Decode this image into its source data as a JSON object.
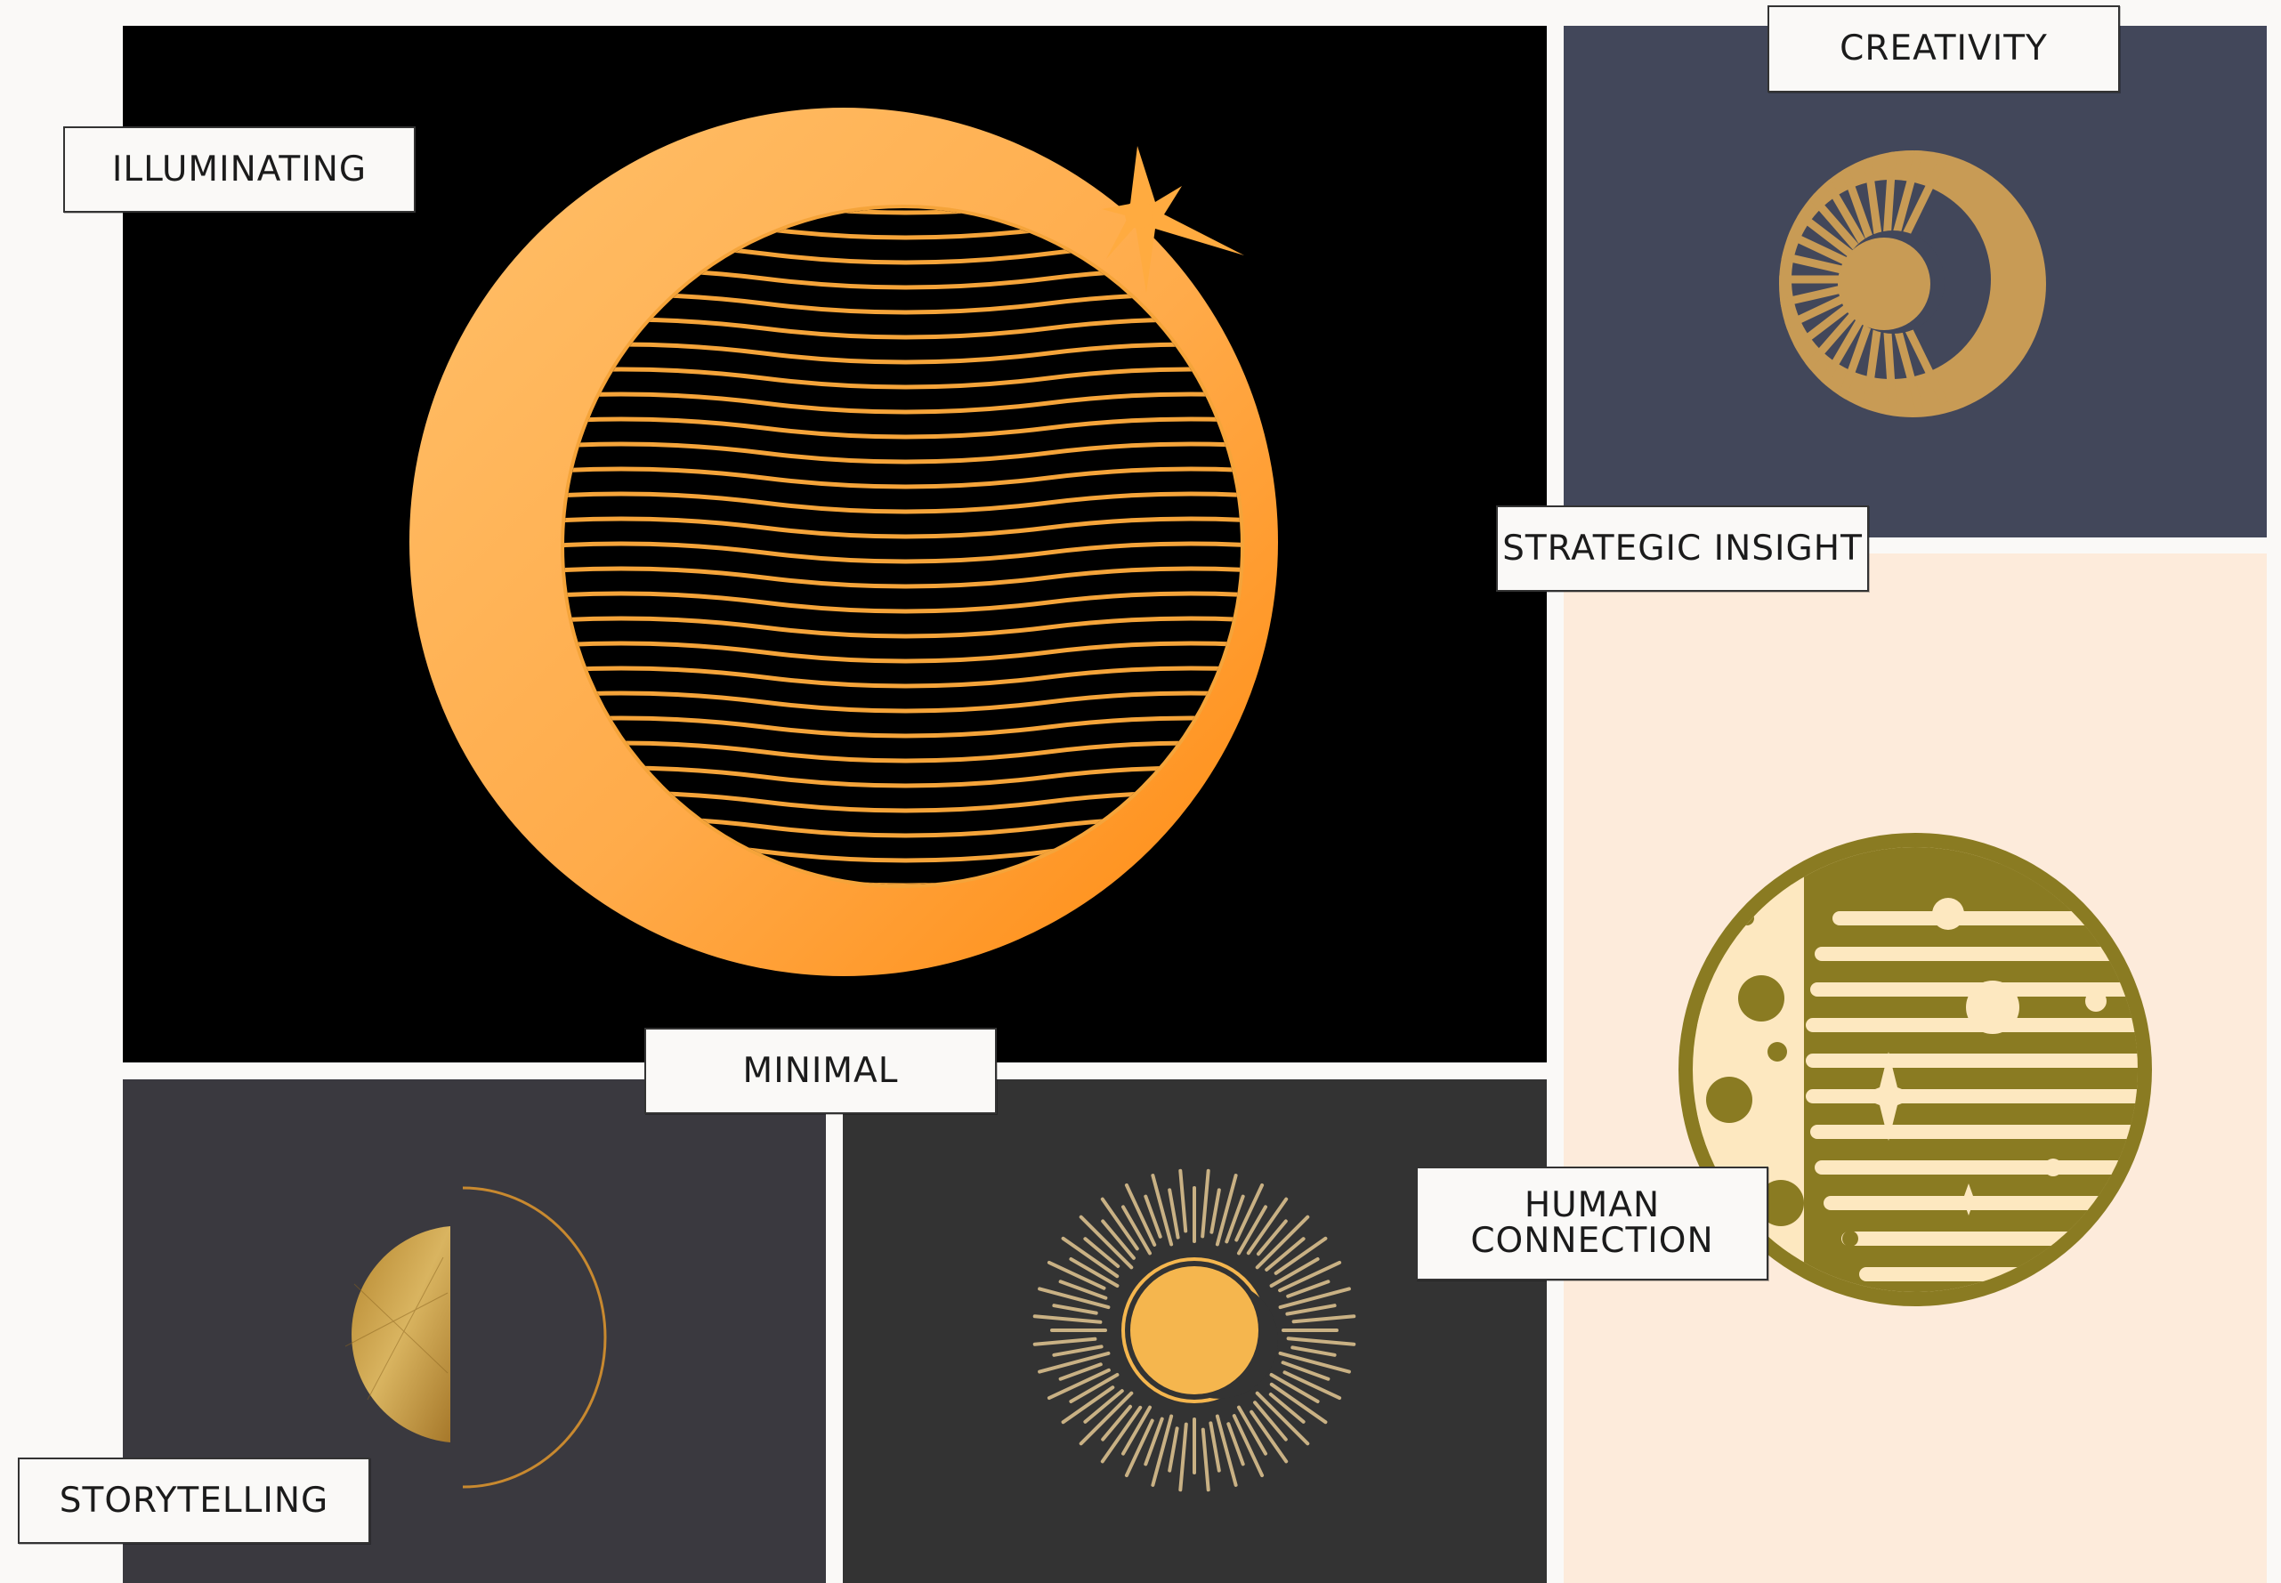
{
  "moodboard": {
    "labels": {
      "illuminating": "ILLUMINATING",
      "creativity": "CREATIVITY",
      "strategic_insight": "STRATEGIC INSIGHT",
      "minimal": "MINIMAL",
      "human_connection_line1": "HUMAN",
      "human_connection_line2": "CONNECTION",
      "storytelling": "STORYTELLING"
    },
    "panels": [
      {
        "id": "crescent-orange",
        "background": "#000000",
        "accent": "#ff9a26"
      },
      {
        "id": "moon-sunburst",
        "background": "#42475a",
        "accent": "#c89b55"
      },
      {
        "id": "moon-olive",
        "background": "#fdebdb",
        "accent": "#8a7b22"
      },
      {
        "id": "half-moon-gold",
        "background": "#3a393f",
        "accent": "#c69a45"
      },
      {
        "id": "crescent-rays",
        "background": "#333333",
        "accent": "#f5b64e"
      }
    ]
  }
}
